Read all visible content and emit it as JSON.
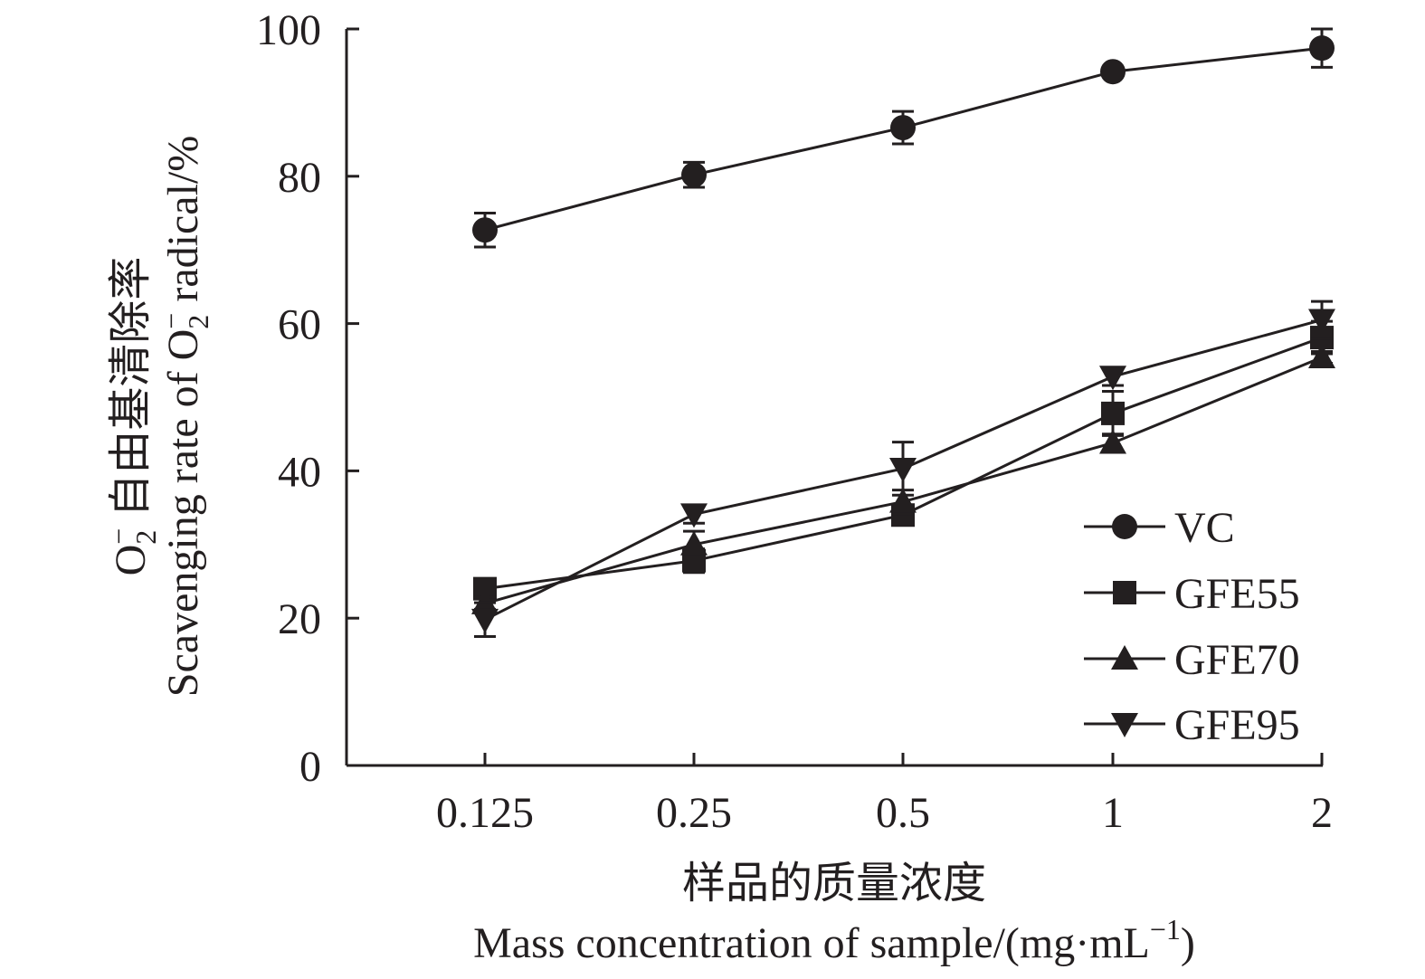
{
  "chart_data": {
    "type": "line",
    "categories": [
      "0.125",
      "0.25",
      "0.5",
      "1",
      "2"
    ],
    "ylim": [
      0,
      100
    ],
    "yticks": [
      0,
      20,
      40,
      60,
      80,
      100
    ],
    "xlabel_cn": "样品的质量浓度",
    "xlabel_en": "Mass concentration of sample/(mg·mL",
    "xlabel_en_sup": "−1",
    "xlabel_en_end": ")",
    "ylabel_cn_prefix": "O",
    "ylabel_cn_sub": "2",
    "ylabel_cn_sup": "−",
    "ylabel_cn": " 自由基清除率",
    "ylabel_en": "Scavenging rate of O",
    "ylabel_en_sub": "2",
    "ylabel_en_sup": "−",
    "ylabel_en_end": " radical/%",
    "legend_position": "bottom-right",
    "series": [
      {
        "name": "VC",
        "marker": "circle",
        "values": [
          72.7,
          80.2,
          86.6,
          94.2,
          97.4
        ],
        "errors": [
          2.3,
          1.7,
          2.2,
          0.4,
          2.6
        ]
      },
      {
        "name": "GFE55",
        "marker": "square",
        "values": [
          24.0,
          27.8,
          34.0,
          47.8,
          58.1
        ],
        "errors": [
          0.8,
          1.6,
          1.1,
          3.0,
          2.2
        ]
      },
      {
        "name": "GFE70",
        "marker": "triangle-up",
        "values": [
          22.0,
          30.0,
          35.8,
          43.8,
          55.4
        ],
        "errors": [
          0.8,
          1.8,
          1.6,
          1.2,
          0.8
        ]
      },
      {
        "name": "GFE95",
        "marker": "triangle-down",
        "values": [
          19.8,
          34.1,
          40.3,
          52.8,
          60.5
        ],
        "errors": [
          2.3,
          1.2,
          3.6,
          1.2,
          2.5
        ]
      }
    ]
  }
}
